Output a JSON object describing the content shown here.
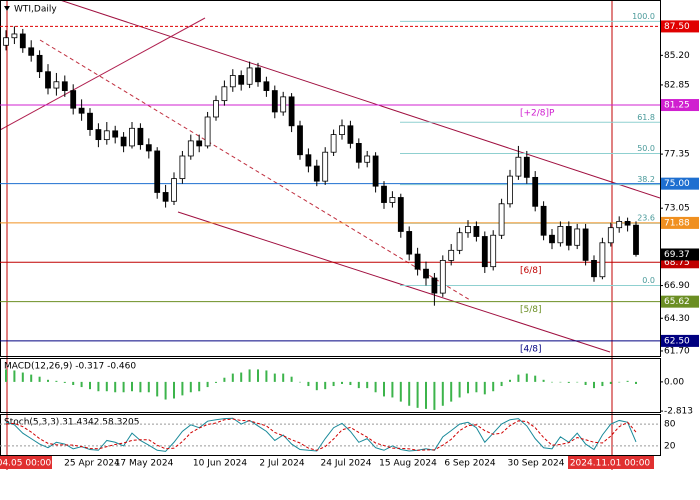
{
  "chart_data": [
    {
      "type": "candlestick",
      "title": "WTI,Daily",
      "ylim": [
        61.3,
        89.6
      ],
      "yticks": [
        {
          "value": 85.2,
          "label": "85.20"
        },
        {
          "value": 82.85,
          "label": "82.85"
        },
        {
          "value": 77.35,
          "label": "77.35"
        },
        {
          "value": 73.05,
          "label": "73.05"
        },
        {
          "value": 66.9,
          "label": "66.90"
        },
        {
          "value": 64.3,
          "label": "64.30"
        },
        {
          "value": 61.7,
          "label": "61.70"
        }
      ],
      "levels": [
        {
          "value": 87.5,
          "label": "87.50",
          "color": "#e00000",
          "name": null
        },
        {
          "value": 81.25,
          "label": "81.25",
          "color": "#d020d0",
          "name": "[+2/8]P"
        },
        {
          "value": 75.0,
          "label": "75.00",
          "color": "#1e6fd0",
          "name": null
        },
        {
          "value": 71.88,
          "label": "71.88",
          "color": "#f09020",
          "name": null
        },
        {
          "value": 68.75,
          "label": "68.75",
          "color": "#c00000",
          "name": "[6/8]"
        },
        {
          "value": 65.62,
          "label": "65.62",
          "color": "#6b8e23",
          "name": "[5/8]"
        },
        {
          "value": 62.5,
          "label": "62.50",
          "color": "#000080",
          "name": "[4/8]"
        }
      ],
      "fib_range": [
        66.9,
        87.9
      ],
      "fib_levels": [
        {
          "value": 100,
          "label": "100.0"
        },
        {
          "value": 61.8,
          "label": "61.8"
        },
        {
          "value": 50,
          "label": "50.0"
        },
        {
          "value": 38.2,
          "label": "38.2"
        },
        {
          "value": 23.6,
          "label": "23.6"
        },
        {
          "value": 0,
          "label": "0.0"
        }
      ],
      "x_labels": [
        "04.05 00:00",
        "25 Apr 2024",
        "17 May 2024",
        "10 Jun 2024",
        "2 Jul 2024",
        "24 Jul 2024",
        "15 Aug 2024",
        "6 Sep 2024",
        "30 Sep 2024",
        "2024.11.01 00:00"
      ],
      "candles": [
        [
          86.0,
          87.2,
          85.6,
          86.6
        ],
        [
          86.6,
          87.5,
          86.1,
          86.9
        ],
        [
          86.9,
          87.3,
          85.4,
          85.8
        ],
        [
          85.8,
          86.4,
          84.7,
          85.2
        ],
        [
          85.2,
          85.6,
          83.4,
          83.9
        ],
        [
          83.9,
          84.5,
          82.1,
          82.6
        ],
        [
          82.6,
          83.8,
          82.0,
          83.1
        ],
        [
          83.1,
          83.6,
          81.9,
          82.4
        ],
        [
          82.4,
          82.9,
          80.5,
          81.0
        ],
        [
          81.0,
          81.7,
          80.0,
          80.6
        ],
        [
          80.6,
          81.0,
          78.8,
          79.3
        ],
        [
          79.3,
          79.8,
          77.9,
          78.5
        ],
        [
          78.5,
          79.9,
          78.1,
          79.2
        ],
        [
          79.2,
          79.6,
          78.2,
          78.7
        ],
        [
          78.7,
          79.1,
          77.5,
          78.0
        ],
        [
          78.0,
          79.9,
          77.8,
          79.4
        ],
        [
          79.4,
          79.8,
          77.7,
          78.1
        ],
        [
          78.1,
          78.6,
          77.0,
          77.6
        ],
        [
          77.6,
          77.9,
          73.8,
          74.3
        ],
        [
          74.3,
          74.9,
          73.1,
          73.6
        ],
        [
          73.6,
          75.9,
          73.3,
          75.4
        ],
        [
          75.4,
          77.6,
          75.0,
          77.2
        ],
        [
          77.2,
          78.9,
          76.9,
          78.4
        ],
        [
          78.4,
          78.9,
          77.5,
          78.0
        ],
        [
          78.0,
          80.7,
          77.8,
          80.3
        ],
        [
          80.3,
          82.0,
          80.0,
          81.6
        ],
        [
          81.6,
          83.2,
          81.2,
          82.7
        ],
        [
          82.7,
          84.1,
          82.3,
          83.6
        ],
        [
          83.6,
          84.0,
          82.4,
          82.9
        ],
        [
          82.9,
          84.7,
          82.6,
          84.2
        ],
        [
          84.2,
          84.6,
          82.7,
          83.1
        ],
        [
          83.1,
          83.5,
          81.9,
          82.4
        ],
        [
          82.4,
          82.8,
          80.2,
          80.7
        ],
        [
          80.7,
          82.3,
          80.4,
          81.9
        ],
        [
          81.9,
          82.2,
          79.1,
          79.6
        ],
        [
          79.6,
          80.0,
          76.9,
          77.3
        ],
        [
          77.3,
          77.8,
          75.9,
          76.4
        ],
        [
          76.4,
          76.9,
          74.8,
          75.2
        ],
        [
          75.2,
          77.9,
          74.9,
          77.5
        ],
        [
          77.5,
          79.3,
          77.2,
          78.9
        ],
        [
          78.9,
          80.1,
          78.5,
          79.6
        ],
        [
          79.6,
          80.0,
          77.8,
          78.2
        ],
        [
          78.2,
          78.6,
          76.2,
          76.7
        ],
        [
          76.7,
          77.6,
          76.3,
          77.2
        ],
        [
          77.2,
          77.5,
          74.3,
          74.8
        ],
        [
          74.8,
          75.2,
          73.0,
          73.5
        ],
        [
          73.5,
          74.4,
          73.1,
          73.9
        ],
        [
          73.9,
          74.2,
          70.7,
          71.2
        ],
        [
          71.2,
          71.6,
          68.9,
          69.4
        ],
        [
          69.4,
          69.9,
          67.7,
          68.2
        ],
        [
          68.2,
          68.8,
          66.9,
          67.5
        ],
        [
          67.5,
          67.9,
          65.3,
          66.3
        ],
        [
          66.3,
          69.3,
          66.0,
          68.9
        ],
        [
          68.9,
          70.2,
          68.5,
          69.7
        ],
        [
          69.7,
          71.5,
          69.4,
          71.1
        ],
        [
          71.1,
          72.1,
          70.7,
          71.6
        ],
        [
          71.6,
          72.0,
          70.4,
          70.8
        ],
        [
          70.8,
          71.2,
          67.9,
          68.4
        ],
        [
          68.4,
          71.3,
          68.1,
          70.9
        ],
        [
          70.9,
          73.8,
          70.6,
          73.4
        ],
        [
          73.4,
          76.1,
          73.1,
          75.6
        ],
        [
          75.6,
          78.0,
          75.3,
          77.1
        ],
        [
          77.1,
          77.6,
          75.0,
          75.5
        ],
        [
          75.5,
          76.0,
          72.8,
          73.2
        ],
        [
          73.2,
          73.6,
          70.5,
          70.9
        ],
        [
          70.9,
          71.4,
          69.8,
          70.3
        ],
        [
          70.3,
          72.0,
          70.0,
          71.6
        ],
        [
          71.6,
          72.0,
          69.7,
          70.1
        ],
        [
          70.1,
          71.8,
          69.8,
          71.4
        ],
        [
          71.4,
          71.8,
          68.5,
          68.9
        ],
        [
          68.9,
          69.3,
          67.2,
          67.6
        ],
        [
          67.6,
          70.7,
          67.4,
          70.3
        ],
        [
          70.3,
          71.9,
          70.0,
          71.5
        ],
        [
          71.5,
          72.4,
          71.1,
          72.0
        ],
        [
          72.0,
          72.3,
          71.2,
          71.7
        ],
        [
          71.7,
          72.0,
          69.2,
          69.37
        ]
      ]
    },
    {
      "type": "bar",
      "title": "MACD(12,26,9) -0.317 -0.460",
      "color": "#3cb44b",
      "ylim": [
        -2.9,
        2.3
      ],
      "yticks": [
        {
          "value": 0,
          "label": "0.00"
        },
        -2.813
      ],
      "values": [
        1.2,
        1.1,
        0.9,
        0.7,
        0.5,
        0.2,
        0.1,
        -0.1,
        -0.3,
        -0.5,
        -0.7,
        -0.9,
        -0.9,
        -1.0,
        -1.0,
        -0.9,
        -1.0,
        -1.0,
        -1.4,
        -1.7,
        -1.6,
        -1.3,
        -1.0,
        -0.9,
        -0.5,
        -0.1,
        0.4,
        0.8,
        0.9,
        1.2,
        1.2,
        1.1,
        0.8,
        0.8,
        0.5,
        0.0,
        -0.4,
        -0.8,
        -0.7,
        -0.4,
        -0.2,
        -0.3,
        -0.6,
        -0.6,
        -1.0,
        -1.4,
        -1.5,
        -1.9,
        -2.3,
        -2.5,
        -2.6,
        -2.7,
        -2.3,
        -1.9,
        -1.5,
        -1.1,
        -1.0,
        -1.2,
        -0.9,
        -0.4,
        0.2,
        0.7,
        0.8,
        0.6,
        0.2,
        0.0,
        0.0,
        -0.1,
        0.0,
        -0.3,
        -0.6,
        -0.4,
        -0.2,
        0.0,
        0.1,
        -0.2
      ]
    },
    {
      "type": "line",
      "title": "Stoch(5,3,3) 31.4342 58.3205",
      "ylim": [
        -5,
        105
      ],
      "yticks": [
        80,
        20
      ],
      "series": [
        {
          "color": "#1a8a9a",
          "dash": false,
          "values": [
            85,
            78,
            55,
            40,
            25,
            15,
            30,
            25,
            12,
            18,
            10,
            8,
            35,
            30,
            20,
            55,
            35,
            22,
            8,
            5,
            30,
            60,
            78,
            70,
            88,
            92,
            95,
            96,
            80,
            90,
            75,
            60,
            35,
            50,
            25,
            10,
            8,
            6,
            40,
            70,
            82,
            60,
            30,
            40,
            15,
            8,
            20,
            10,
            6,
            8,
            12,
            8,
            45,
            62,
            80,
            85,
            70,
            30,
            55,
            80,
            92,
            95,
            75,
            40,
            15,
            12,
            45,
            30,
            55,
            25,
            10,
            50,
            80,
            90,
            85,
            31
          ]
        },
        {
          "color": "#d00000",
          "dash": true,
          "values": [
            80,
            82,
            73,
            58,
            40,
            27,
            23,
            23,
            22,
            18,
            13,
            12,
            18,
            24,
            28,
            35,
            37,
            37,
            22,
            12,
            14,
            32,
            56,
            69,
            79,
            83,
            92,
            94,
            90,
            89,
            82,
            75,
            57,
            48,
            37,
            28,
            14,
            8,
            18,
            39,
            64,
            71,
            57,
            44,
            28,
            21,
            14,
            13,
            12,
            8,
            9,
            9,
            22,
            38,
            62,
            76,
            78,
            62,
            52,
            55,
            76,
            89,
            87,
            70,
            43,
            22,
            24,
            29,
            43,
            37,
            30,
            28,
            47,
            73,
            85,
            58
          ]
        }
      ]
    }
  ]
}
